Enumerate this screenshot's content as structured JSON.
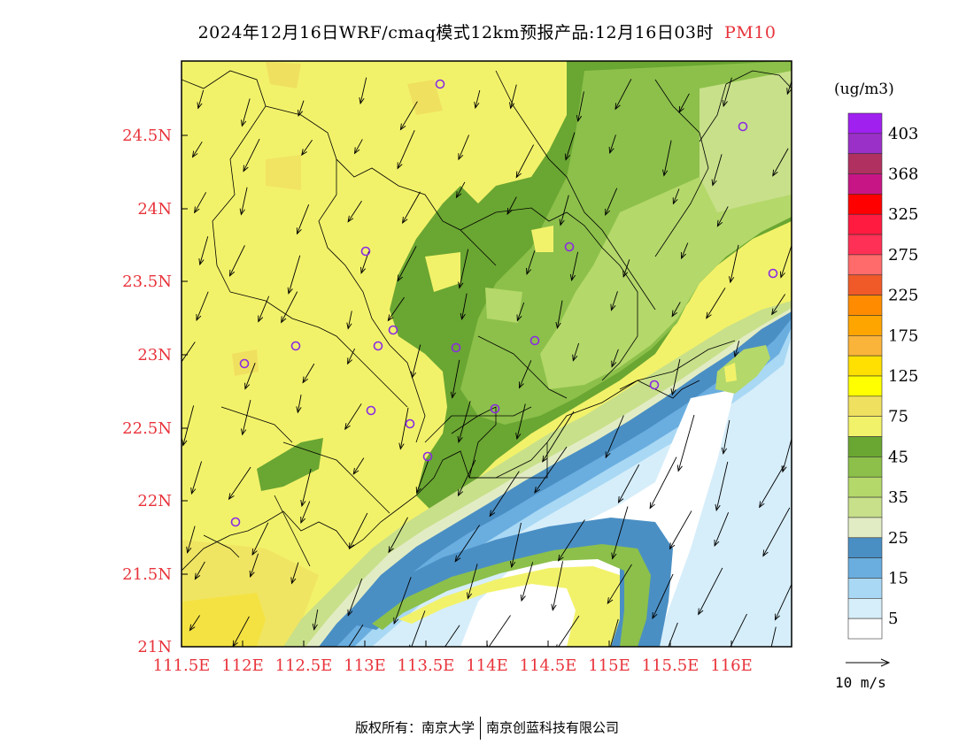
{
  "title": {
    "text": "2024年12月16日WRF/cmaq模式12km预报产品:12月16日03时",
    "pollutant": "PM10"
  },
  "axes": {
    "x_ticks": [
      "111.5E",
      "112E",
      "112.5E",
      "113E",
      "113.5E",
      "114E",
      "114.5E",
      "115E",
      "115.5E",
      "116E"
    ],
    "y_ticks": [
      "21N",
      "21.5N",
      "22N",
      "22.5N",
      "23N",
      "23.5N",
      "24N",
      "24.5N"
    ],
    "tick_color": "#e8333b"
  },
  "legend": {
    "unit": "(ug/m3)",
    "levels": [
      {
        "label": "403",
        "color": "#a020f0"
      },
      {
        "label": "",
        "color": "#9b30c8"
      },
      {
        "label": "368",
        "color": "#b03060"
      },
      {
        "label": "",
        "color": "#c71585"
      },
      {
        "label": "325",
        "color": "#ff0000"
      },
      {
        "label": "",
        "color": "#ff1a40"
      },
      {
        "label": "275",
        "color": "#ff3055"
      },
      {
        "label": "",
        "color": "#ff6a6a"
      },
      {
        "label": "225",
        "color": "#f05a28"
      },
      {
        "label": "",
        "color": "#ff8c00"
      },
      {
        "label": "175",
        "color": "#ffa500"
      },
      {
        "label": "",
        "color": "#fbb43a"
      },
      {
        "label": "125",
        "color": "#ffe000"
      },
      {
        "label": "",
        "color": "#ffff00"
      },
      {
        "label": "75",
        "color": "#f0e060"
      },
      {
        "label": "",
        "color": "#f2f26a"
      },
      {
        "label": "45",
        "color": "#6aa632"
      },
      {
        "label": "",
        "color": "#8cc04a"
      },
      {
        "label": "35",
        "color": "#b4d86a"
      },
      {
        "label": "",
        "color": "#c8e08a"
      },
      {
        "label": "25",
        "color": "#e2ecc4"
      },
      {
        "label": "",
        "color": "#4a8fc4"
      },
      {
        "label": "15",
        "color": "#6aaee0"
      },
      {
        "label": "",
        "color": "#a8d8f4"
      },
      {
        "label": "5",
        "color": "#d6eefa"
      },
      {
        "label": "",
        "color": "#ffffff"
      }
    ]
  },
  "wind_reference": "10 m/s",
  "footer": {
    "left": "版权所有：南京大学",
    "right": "南京创蓝科技有限公司"
  },
  "colors": {
    "land_base": "#f2f26a",
    "land_orange": "#f0e060",
    "green_dark": "#6aa632",
    "green_mid": "#8cc04a",
    "green_light": "#b4d86a",
    "green_pale": "#c8e08a",
    "sea_white": "#ffffff",
    "sea_pale": "#d6eefa",
    "sea_light": "#a8d8f4",
    "sea_mid": "#6aaee0",
    "sea_dark": "#4a8fc4",
    "station": "#8a2be2"
  }
}
